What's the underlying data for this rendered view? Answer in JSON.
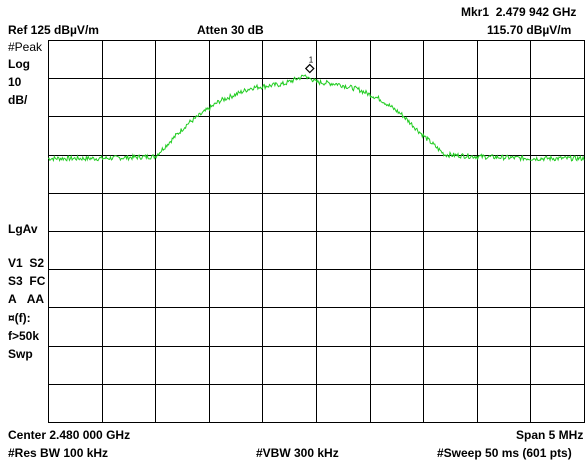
{
  "header": {
    "marker_id": "Mkr1",
    "marker_freq": "2.479 942 GHz",
    "ref_level": "Ref 125 dBµV/m",
    "atten": "Atten 30 dB",
    "marker_amp": "115.70 dBµV/m"
  },
  "left_panel": {
    "detector": "#Peak",
    "scale_type": "Log",
    "scale_value": "10",
    "scale_unit": "dB/",
    "avg_type": "LgAv",
    "v1": "V1",
    "s2": "S2",
    "s3": "S3",
    "fc": "FC",
    "a1": "A",
    "aa": "AA",
    "ff": "¤(f):",
    "f50k": "f>50k",
    "swp": "Swp"
  },
  "footer": {
    "center": "Center 2.480 000 GHz",
    "span": "Span 5 MHz",
    "rbw": "#Res BW 100 kHz",
    "vbw": "#VBW 300 kHz",
    "sweep": "#Sweep 50 ms (601 pts)"
  },
  "marker": {
    "label": "1"
  },
  "colors": {
    "trace": "#22cc22",
    "grid": "#000000",
    "marker": "#000000"
  },
  "chart_data": {
    "type": "line",
    "x_unit": "GHz",
    "y_unit": "dBµV/m",
    "xlim": [
      2.4775,
      2.4825
    ],
    "ylim": [
      25,
      125
    ],
    "grid": true,
    "x": [
      2.4775,
      2.478,
      2.4785,
      2.4788,
      2.4791,
      2.4794,
      2.4797,
      2.4799,
      2.48,
      2.4802,
      2.4804,
      2.4806,
      2.4808,
      2.481,
      2.4812,
      2.4815,
      2.482,
      2.4825
    ],
    "y": [
      94,
      94,
      94.5,
      103,
      109,
      112.5,
      113.5,
      115.7,
      114,
      113.5,
      112,
      109.5,
      105.5,
      100,
      95,
      94.5,
      94,
      94
    ],
    "marker": {
      "x": 2.479942,
      "y": 115.7
    }
  }
}
